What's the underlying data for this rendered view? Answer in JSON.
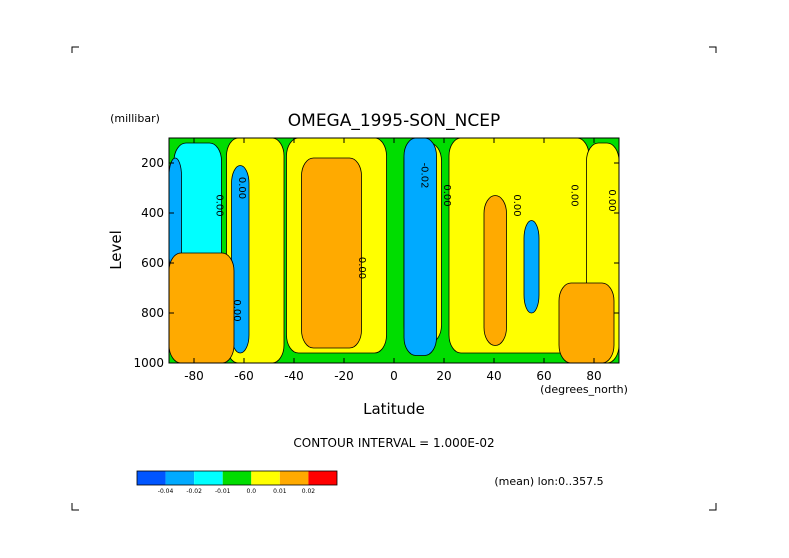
{
  "chart_data": {
    "type": "heatmap",
    "title": "OMEGA_1995-SON_NCEP",
    "xlabel": "Latitude",
    "xunits": "(degrees_north)",
    "ylabel": "Level",
    "yunits": "(millibar)",
    "xlim": [
      -90,
      90
    ],
    "ylim": [
      1000,
      100
    ],
    "x_ticks": [
      -80,
      -60,
      -40,
      -20,
      0,
      20,
      40,
      60,
      80
    ],
    "y_ticks": [
      200,
      400,
      600,
      800,
      1000
    ],
    "contour_labels": [
      {
        "text": "0.00",
        "lat": -71,
        "lev": 370
      },
      {
        "text": "0.00",
        "lat": -62,
        "lev": 300
      },
      {
        "text": "0.00",
        "lat": -14,
        "lev": 620
      },
      {
        "text": "0.00",
        "lat": -64,
        "lev": 790
      },
      {
        "text": "-0.02",
        "lat": 11,
        "lev": 250
      },
      {
        "text": "0.00",
        "lat": 20,
        "lev": 330
      },
      {
        "text": "0.00",
        "lat": 48,
        "lev": 370
      },
      {
        "text": "0.00",
        "lat": 71,
        "lev": 330
      },
      {
        "text": "0.00",
        "lat": 86,
        "lev": 350
      }
    ],
    "regions": [
      {
        "cls": "mid",
        "lat": [
          -90,
          90
        ],
        "lev": [
          1000,
          100
        ]
      },
      {
        "cls": "low",
        "lat": [
          -88,
          -69
        ],
        "lev": [
          1000,
          120
        ]
      },
      {
        "cls": "high",
        "lat": [
          -67,
          -44
        ],
        "lev": [
          1000,
          100
        ]
      },
      {
        "cls": "high",
        "lat": [
          -43,
          -3
        ],
        "lev": [
          960,
          100
        ]
      },
      {
        "cls": "veryhigh",
        "lat": [
          -37,
          -13
        ],
        "lev": [
          940,
          180
        ]
      },
      {
        "cls": "high",
        "lat": [
          4,
          19
        ],
        "lev": [
          920,
          120
        ]
      },
      {
        "cls": "high",
        "lat": [
          22,
          78
        ],
        "lev": [
          960,
          100
        ]
      },
      {
        "cls": "veryhigh",
        "lat": [
          36,
          45
        ],
        "lev": [
          930,
          330
        ]
      },
      {
        "cls": "high",
        "lat": [
          77,
          90
        ],
        "lev": [
          1000,
          120
        ]
      },
      {
        "cls": "lowest",
        "lat": [
          -90,
          -85
        ],
        "lev": [
          640,
          180
        ]
      },
      {
        "cls": "lowest",
        "lat": [
          -65,
          -58
        ],
        "lev": [
          960,
          210
        ]
      },
      {
        "cls": "lowest",
        "lat": [
          4,
          17
        ],
        "lev": [
          970,
          100
        ]
      },
      {
        "cls": "lowest",
        "lat": [
          52,
          58
        ],
        "lev": [
          800,
          430
        ]
      },
      {
        "cls": "veryhigh",
        "lat": [
          -90,
          -64
        ],
        "lev": [
          1000,
          560
        ]
      },
      {
        "cls": "veryhigh",
        "lat": [
          66,
          88
        ],
        "lev": [
          1000,
          680
        ]
      }
    ],
    "colorbar": {
      "labels": [
        "-0.04",
        "-0.02",
        "-0.01",
        "0.0",
        "0.01",
        "0.02"
      ],
      "levels": [
        -0.04,
        -0.02,
        -0.01,
        0.0,
        0.01,
        0.02
      ],
      "colors": [
        "#0055ff",
        "#00aaff",
        "#00ffff",
        "#00dd00",
        "#ffff00",
        "#ffaa00",
        "#ff0000"
      ]
    },
    "contour_interval_text": "CONTOUR INTERVAL = 1.000E-02",
    "mean_text": "(mean) lon:0..357.5"
  }
}
